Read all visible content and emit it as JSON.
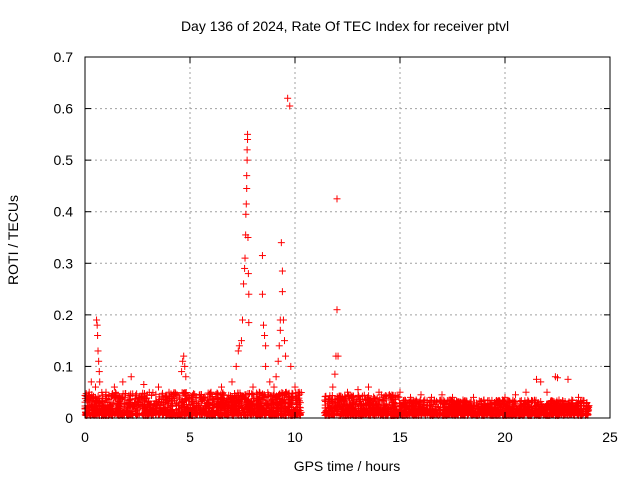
{
  "chart_data": {
    "type": "scatter",
    "title": "Day 136 of 2024, Rate Of TEC Index for receiver ptvl",
    "xlabel": "GPS time / hours",
    "ylabel": "ROTI / TECUs",
    "xlim": [
      0,
      25
    ],
    "ylim": [
      0,
      0.7
    ],
    "grid": true,
    "xticks": [
      0,
      5,
      10,
      15,
      20,
      25
    ],
    "xtick_labels": [
      "0",
      "5",
      "10",
      "15",
      "20",
      "25"
    ],
    "yticks": [
      0,
      0.1,
      0.2,
      0.3,
      0.4,
      0.5,
      0.6,
      0.7
    ],
    "ytick_labels": [
      "0",
      "0.1",
      "0.2",
      "0.3",
      "0.4",
      "0.5",
      "0.6",
      "0.7"
    ],
    "marker": "+",
    "series_color": "#ff0000",
    "data_gaps_hours": [
      [
        10.3,
        11.4
      ]
    ],
    "series": [
      {
        "name": "ROTI",
        "points": [
          [
            0.1,
            0.02
          ],
          [
            0.2,
            0.05
          ],
          [
            0.3,
            0.07
          ],
          [
            0.4,
            0.04
          ],
          [
            0.5,
            0.06
          ],
          [
            0.55,
            0.19
          ],
          [
            0.58,
            0.18
          ],
          [
            0.6,
            0.16
          ],
          [
            0.62,
            0.13
          ],
          [
            0.65,
            0.11
          ],
          [
            0.68,
            0.09
          ],
          [
            0.7,
            0.07
          ],
          [
            1.0,
            0.05
          ],
          [
            1.4,
            0.06
          ],
          [
            1.8,
            0.07
          ],
          [
            2.2,
            0.08
          ],
          [
            2.8,
            0.065
          ],
          [
            3.5,
            0.06
          ],
          [
            4.0,
            0.05
          ],
          [
            4.6,
            0.09
          ],
          [
            4.65,
            0.11
          ],
          [
            4.7,
            0.12
          ],
          [
            4.75,
            0.1
          ],
          [
            4.8,
            0.08
          ],
          [
            5.5,
            0.04
          ],
          [
            6.0,
            0.05
          ],
          [
            6.5,
            0.06
          ],
          [
            7.0,
            0.07
          ],
          [
            7.2,
            0.1
          ],
          [
            7.3,
            0.13
          ],
          [
            7.35,
            0.14
          ],
          [
            7.45,
            0.15
          ],
          [
            7.5,
            0.19
          ],
          [
            7.55,
            0.26
          ],
          [
            7.6,
            0.29
          ],
          [
            7.62,
            0.31
          ],
          [
            7.65,
            0.355
          ],
          [
            7.66,
            0.395
          ],
          [
            7.68,
            0.415
          ],
          [
            7.7,
            0.445
          ],
          [
            7.7,
            0.47
          ],
          [
            7.72,
            0.5
          ],
          [
            7.72,
            0.52
          ],
          [
            7.74,
            0.54
          ],
          [
            7.74,
            0.55
          ],
          [
            7.76,
            0.35
          ],
          [
            7.78,
            0.28
          ],
          [
            7.8,
            0.24
          ],
          [
            7.8,
            0.185
          ],
          [
            8.0,
            0.06
          ],
          [
            8.3,
            0.05
          ],
          [
            8.45,
            0.315
          ],
          [
            8.45,
            0.24
          ],
          [
            8.5,
            0.18
          ],
          [
            8.55,
            0.16
          ],
          [
            8.6,
            0.14
          ],
          [
            8.6,
            0.1
          ],
          [
            8.8,
            0.07
          ],
          [
            9.0,
            0.06
          ],
          [
            9.1,
            0.08
          ],
          [
            9.2,
            0.11
          ],
          [
            9.25,
            0.14
          ],
          [
            9.3,
            0.17
          ],
          [
            9.3,
            0.19
          ],
          [
            9.35,
            0.34
          ],
          [
            9.4,
            0.285
          ],
          [
            9.4,
            0.245
          ],
          [
            9.45,
            0.19
          ],
          [
            9.5,
            0.15
          ],
          [
            9.55,
            0.12
          ],
          [
            9.65,
            0.62
          ],
          [
            9.75,
            0.605
          ],
          [
            9.8,
            0.1
          ],
          [
            10.0,
            0.06
          ],
          [
            10.2,
            0.05
          ],
          [
            11.8,
            0.06
          ],
          [
            11.9,
            0.085
          ],
          [
            11.95,
            0.12
          ],
          [
            12.0,
            0.425
          ],
          [
            12.0,
            0.21
          ],
          [
            12.05,
            0.12
          ],
          [
            12.5,
            0.05
          ],
          [
            13.0,
            0.055
          ],
          [
            13.5,
            0.06
          ],
          [
            14.0,
            0.05
          ],
          [
            14.5,
            0.045
          ],
          [
            15.0,
            0.05
          ],
          [
            15.5,
            0.04
          ],
          [
            16.0,
            0.045
          ],
          [
            16.5,
            0.04
          ],
          [
            17.0,
            0.045
          ],
          [
            17.5,
            0.04
          ],
          [
            18.0,
            0.035
          ],
          [
            18.5,
            0.04
          ],
          [
            19.0,
            0.035
          ],
          [
            19.5,
            0.03
          ],
          [
            20.0,
            0.04
          ],
          [
            20.5,
            0.045
          ],
          [
            21.0,
            0.05
          ],
          [
            21.5,
            0.075
          ],
          [
            21.7,
            0.07
          ],
          [
            22.0,
            0.05
          ],
          [
            22.4,
            0.08
          ],
          [
            22.5,
            0.078
          ],
          [
            23.0,
            0.075
          ],
          [
            23.5,
            0.04
          ],
          [
            23.9,
            0.03
          ]
        ]
      }
    ],
    "baseline_band": [
      {
        "x_start": 0.0,
        "x_end": 10.3,
        "y_max": 0.045
      },
      {
        "x_start": 11.4,
        "x_end": 15.0,
        "y_max": 0.04
      },
      {
        "x_start": 15.0,
        "x_end": 24.0,
        "y_max": 0.03
      }
    ]
  }
}
